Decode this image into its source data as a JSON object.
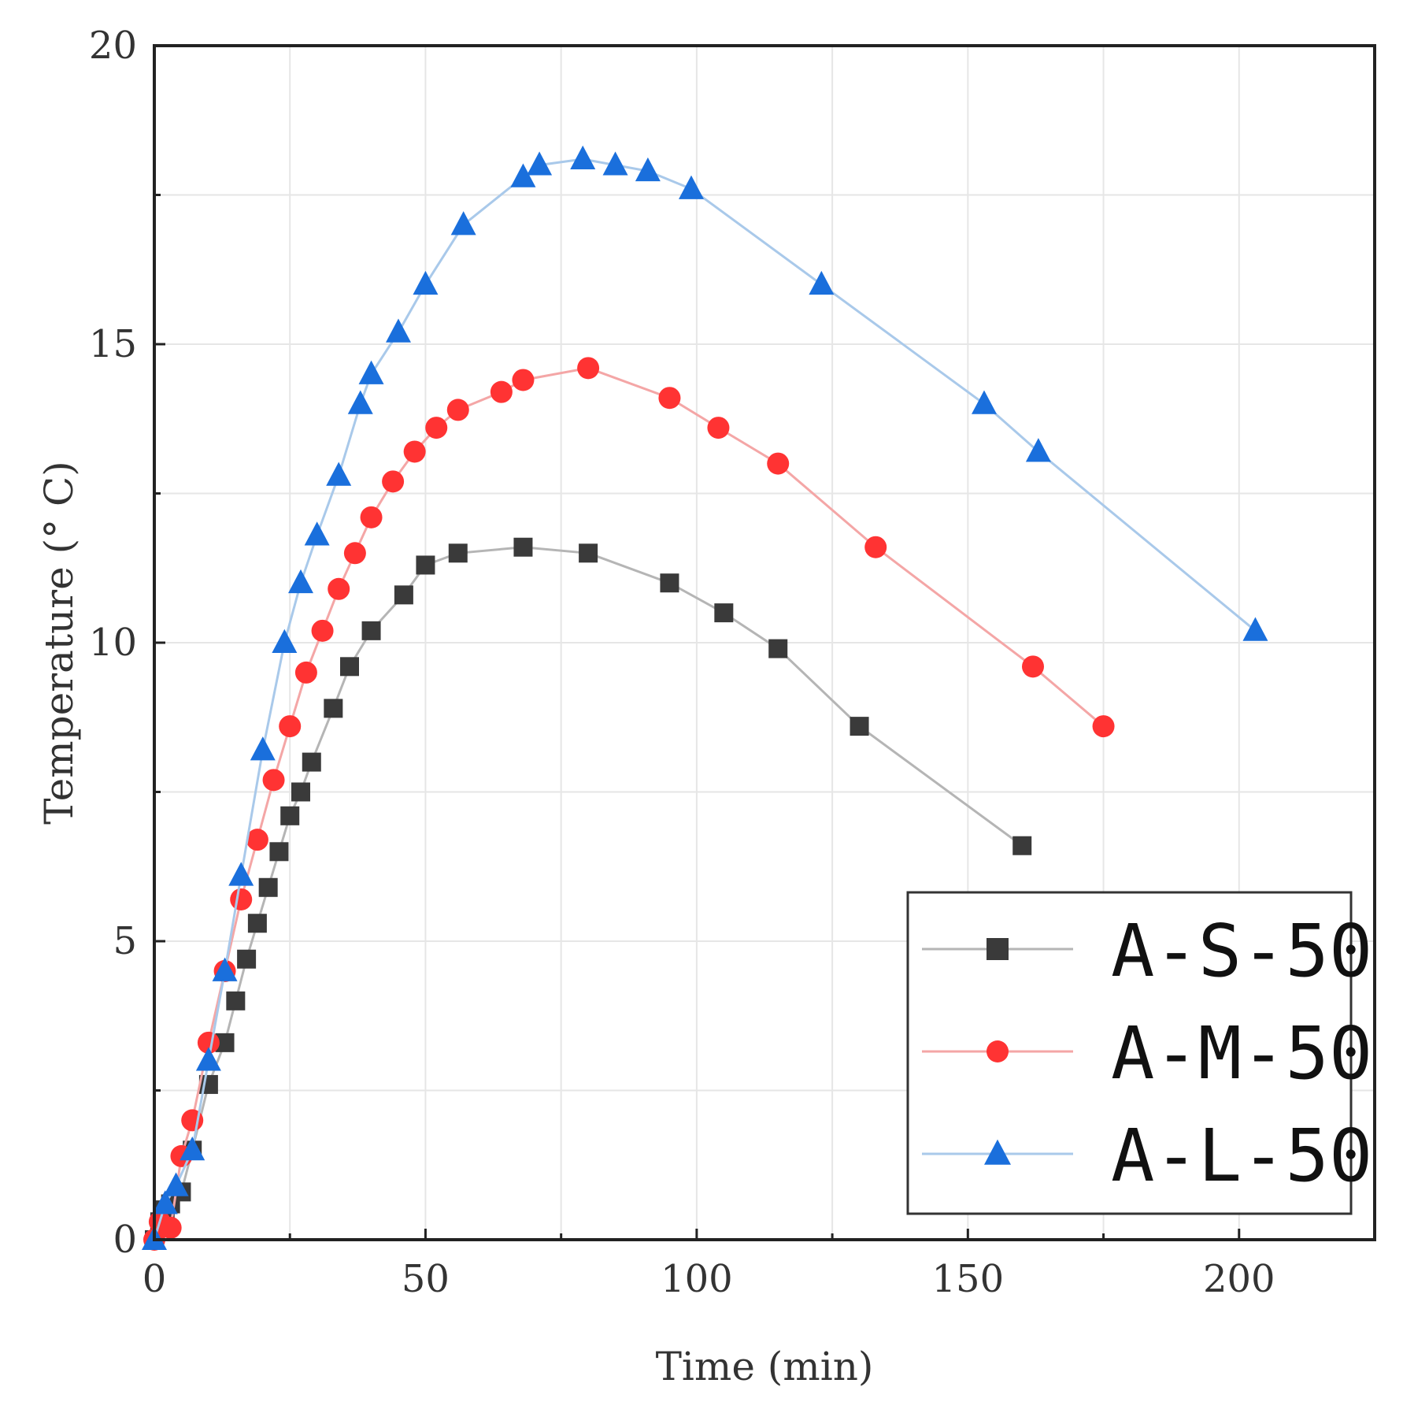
{
  "chart_data": {
    "type": "line",
    "title": "",
    "xlabel": "Time (min)",
    "ylabel": "Temperature (° C)",
    "xlim": [
      0,
      225
    ],
    "ylim": [
      0,
      20
    ],
    "xticks": [
      0,
      50,
      100,
      150,
      200
    ],
    "yticks": [
      0,
      5,
      10,
      15,
      20
    ],
    "grid": true,
    "legend_position": "bottom-right",
    "series": [
      {
        "name": "A-S-50",
        "marker": "square",
        "color": "#3a3a3a",
        "line_color": "#b5b5b5",
        "points": [
          [
            0,
            0
          ],
          [
            1,
            0.3
          ],
          [
            2,
            0.5
          ],
          [
            3,
            0.6
          ],
          [
            5,
            0.8
          ],
          [
            7,
            1.5
          ],
          [
            10,
            2.6
          ],
          [
            13,
            3.3
          ],
          [
            15,
            4.0
          ],
          [
            17,
            4.7
          ],
          [
            19,
            5.3
          ],
          [
            21,
            5.9
          ],
          [
            23,
            6.5
          ],
          [
            25,
            7.1
          ],
          [
            27,
            7.5
          ],
          [
            29,
            8.0
          ],
          [
            33,
            8.9
          ],
          [
            36,
            9.6
          ],
          [
            40,
            10.2
          ],
          [
            46,
            10.8
          ],
          [
            50,
            11.3
          ],
          [
            56,
            11.5
          ],
          [
            68,
            11.6
          ],
          [
            80,
            11.5
          ],
          [
            95,
            11.0
          ],
          [
            105,
            10.5
          ],
          [
            115,
            9.9
          ],
          [
            130,
            8.6
          ],
          [
            160,
            6.6
          ]
        ]
      },
      {
        "name": "A-M-50",
        "marker": "circle",
        "color": "#ff3333",
        "line_color": "#f4a6a6",
        "points": [
          [
            0,
            0
          ],
          [
            1,
            0.3
          ],
          [
            3,
            0.2
          ],
          [
            5,
            1.4
          ],
          [
            7,
            2.0
          ],
          [
            10,
            3.3
          ],
          [
            13,
            4.5
          ],
          [
            16,
            5.7
          ],
          [
            19,
            6.7
          ],
          [
            22,
            7.7
          ],
          [
            25,
            8.6
          ],
          [
            28,
            9.5
          ],
          [
            31,
            10.2
          ],
          [
            34,
            10.9
          ],
          [
            37,
            11.5
          ],
          [
            40,
            12.1
          ],
          [
            44,
            12.7
          ],
          [
            48,
            13.2
          ],
          [
            52,
            13.6
          ],
          [
            56,
            13.9
          ],
          [
            64,
            14.2
          ],
          [
            68,
            14.4
          ],
          [
            80,
            14.6
          ],
          [
            95,
            14.1
          ],
          [
            104,
            13.6
          ],
          [
            115,
            13.0
          ],
          [
            133,
            11.6
          ],
          [
            162,
            9.6
          ],
          [
            175,
            8.6
          ]
        ]
      },
      {
        "name": "A-L-50",
        "marker": "triangle",
        "color": "#1a6fdc",
        "line_color": "#a9c9ea",
        "points": [
          [
            0,
            0
          ],
          [
            2,
            0.6
          ],
          [
            4,
            0.9
          ],
          [
            7,
            1.5
          ],
          [
            10,
            3.0
          ],
          [
            13,
            4.5
          ],
          [
            16,
            6.1
          ],
          [
            20,
            8.2
          ],
          [
            24,
            10.0
          ],
          [
            27,
            11.0
          ],
          [
            30,
            11.8
          ],
          [
            34,
            12.8
          ],
          [
            38,
            14.0
          ],
          [
            40,
            14.5
          ],
          [
            45,
            15.2
          ],
          [
            50,
            16.0
          ],
          [
            57,
            17.0
          ],
          [
            68,
            17.8
          ],
          [
            71,
            18.0
          ],
          [
            79,
            18.1
          ],
          [
            85,
            18.0
          ],
          [
            91,
            17.9
          ],
          [
            99,
            17.6
          ],
          [
            123,
            16.0
          ],
          [
            153,
            14.0
          ],
          [
            163,
            13.2
          ],
          [
            203,
            10.2
          ]
        ]
      }
    ]
  }
}
